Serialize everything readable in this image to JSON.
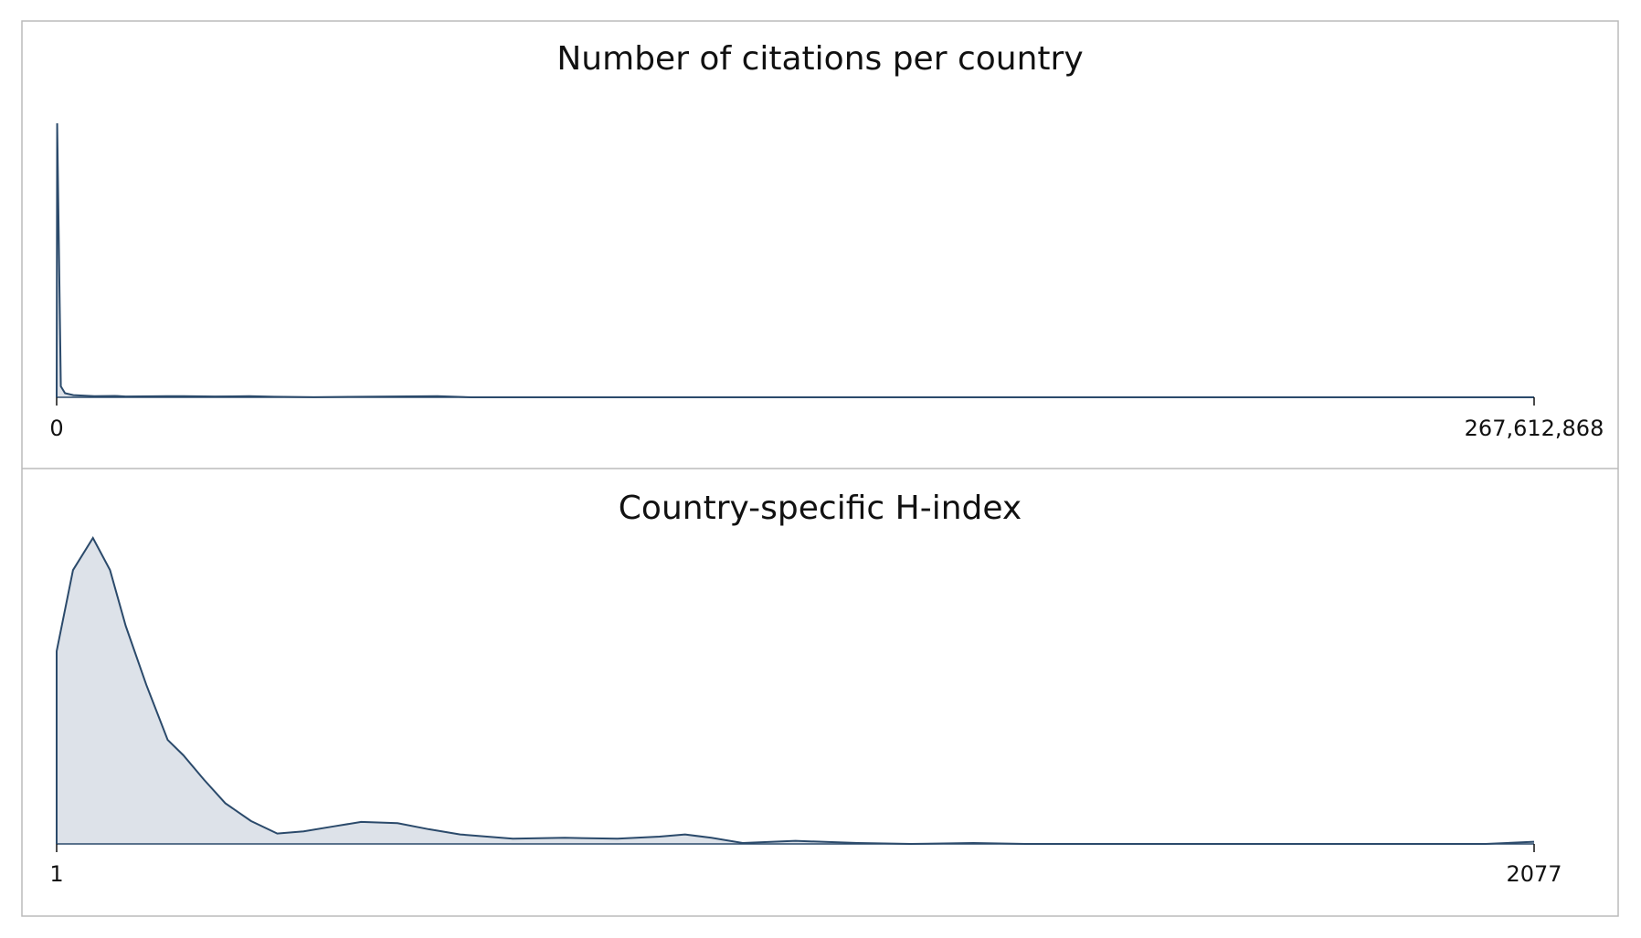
{
  "chart_data": [
    {
      "type": "area",
      "title": "Number of citations per country",
      "x": [
        0,
        94764,
        758112,
        1516224,
        3032448,
        6823008,
        10613568,
        12508848,
        20090000,
        22933000,
        28619000,
        34873000,
        39422000,
        46624000,
        68988000,
        75049000,
        267612868
      ],
      "values": [
        0,
        1.0,
        0.04,
        0.015,
        0.008,
        0.004,
        0.005,
        0.003,
        0.004,
        0.004,
        0.003,
        0.004,
        0.002,
        0.0005,
        0.004,
        0.0002,
        0
      ],
      "xlim": [
        0,
        267612868
      ],
      "xticks": [
        0,
        {
          "value": 267612868,
          "label": "267,612,868"
        }
      ],
      "ylim": [
        0,
        1
      ],
      "color": "#2b4a6b",
      "fill": "#dde2e9"
    },
    {
      "type": "area",
      "title": "Country-specific H-index",
      "x": [
        1,
        24,
        52,
        76,
        98,
        127,
        157,
        179,
        208,
        238,
        274,
        311,
        348,
        392,
        429,
        480,
        524,
        568,
        642,
        715,
        789,
        848,
        884,
        921,
        965,
        1039,
        1127,
        1201,
        1289,
        1362,
        2009,
        2077
      ],
      "values": [
        0.63,
        0.895,
        1.0,
        0.895,
        0.713,
        0.52,
        0.34,
        0.29,
        0.21,
        0.133,
        0.075,
        0.034,
        0.041,
        0.058,
        0.072,
        0.068,
        0.048,
        0.031,
        0.017,
        0.02,
        0.017,
        0.024,
        0.031,
        0.02,
        0.003,
        0.01,
        0.003,
        0,
        0.003,
        0,
        0,
        0.007
      ],
      "xlim": [
        1,
        2077
      ],
      "xticks": [
        1,
        2077
      ],
      "ylim": [
        0,
        1
      ],
      "color": "#2b4a6b",
      "fill": "#dde2e9"
    }
  ]
}
